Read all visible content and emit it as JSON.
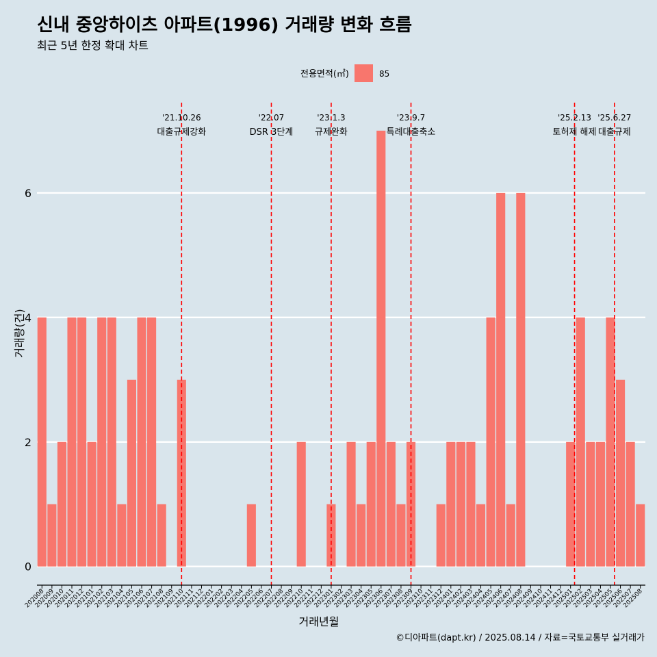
{
  "chart_data": {
    "type": "bar",
    "title": "신내 중앙하이츠 아파트(1996) 거래량 변화 흐름",
    "subtitle": "최근 5년 한정 확대 차트",
    "xlabel": "거래년월",
    "ylabel": "거래량(건)",
    "caption": "©디아파트(dapt.kr) / 2025.08.14 / 자료=국토교통부 실거래가",
    "legend": {
      "title": "전용면적(㎡)",
      "position": "top",
      "entries": [
        {
          "label": "85",
          "color": "#f8766d"
        }
      ]
    },
    "grid": true,
    "ylim": [
      -0.3,
      7.45
    ],
    "yticks": [
      0,
      2,
      4,
      6
    ],
    "categories": [
      "202008",
      "202009",
      "202010",
      "202011",
      "202012",
      "202101",
      "202102",
      "202103",
      "202104",
      "202105",
      "202106",
      "202107",
      "202108",
      "202109",
      "202110",
      "202111",
      "202112",
      "202201",
      "202202",
      "202203",
      "202204",
      "202205",
      "202206",
      "202207",
      "202208",
      "202209",
      "202210",
      "202211",
      "202212",
      "202301",
      "202302",
      "202303",
      "202304",
      "202305",
      "202306",
      "202307",
      "202308",
      "202309",
      "202310",
      "202311",
      "202312",
      "202401",
      "202402",
      "202403",
      "202404",
      "202405",
      "202406",
      "202407",
      "202408",
      "202409",
      "202410",
      "202411",
      "202412",
      "202501",
      "202502",
      "202503",
      "202504",
      "202505",
      "202506",
      "202507",
      "202508"
    ],
    "series": [
      {
        "name": "85",
        "color": "#f8766d",
        "values": [
          4,
          1,
          2,
          4,
          4,
          2,
          4,
          4,
          1,
          3,
          4,
          4,
          1,
          0,
          3,
          0,
          0,
          0,
          0,
          0,
          0,
          1,
          0,
          0,
          0,
          0,
          2,
          0,
          0,
          1,
          0,
          2,
          1,
          2,
          7,
          2,
          1,
          2,
          0,
          0,
          1,
          2,
          2,
          2,
          1,
          4,
          6,
          1,
          6,
          0,
          0,
          0,
          0,
          2,
          4,
          2,
          2,
          4,
          3,
          2,
          1
        ]
      }
    ],
    "annotations": [
      {
        "x": 14.0,
        "line1": "'21.10.26",
        "line2": "대출규제강화"
      },
      {
        "x": 23.0,
        "line1": "'22.07",
        "line2": "DSR 3단계"
      },
      {
        "x": 29.0,
        "line1": "'23.1.3",
        "line2": "규제완화"
      },
      {
        "x": 37.0,
        "line1": "'23.9.7",
        "line2": "특례대출축소"
      },
      {
        "x": 53.4,
        "line1": "'25.2.13",
        "line2": "토허제 해제"
      },
      {
        "x": 57.4,
        "line1": "'25.6.27",
        "line2": "대출규제"
      }
    ],
    "annotation_color": "#ff0000"
  }
}
